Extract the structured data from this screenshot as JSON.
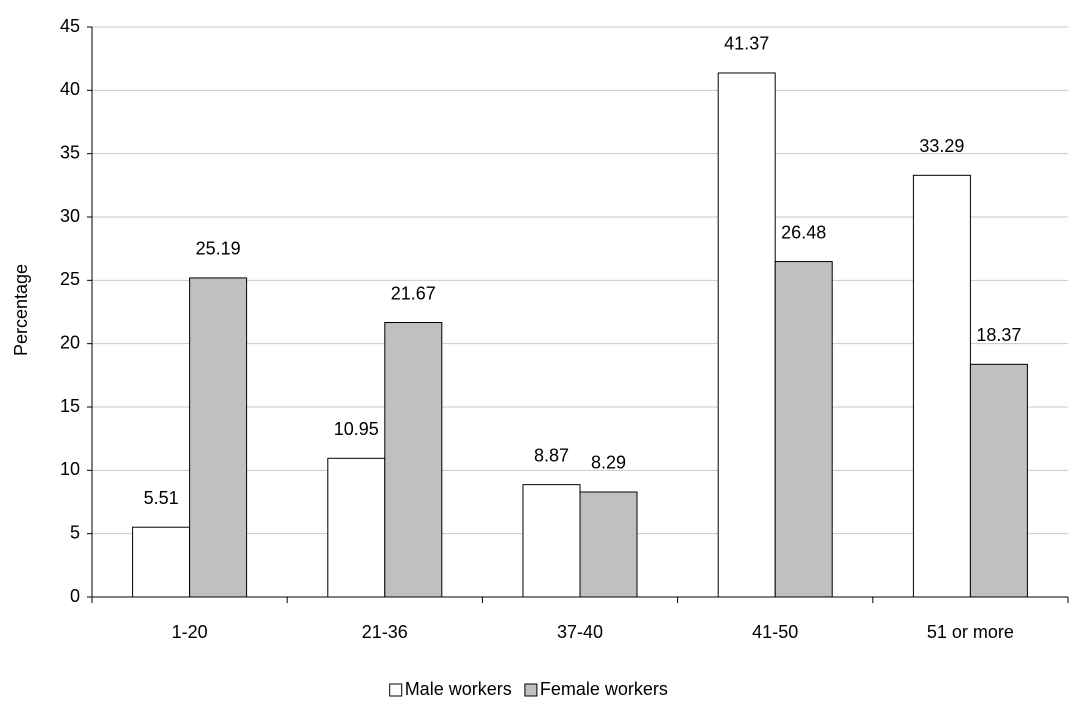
{
  "chart_data": {
    "type": "bar",
    "y_label": "Percentage",
    "categories": [
      "1-20",
      "21-36",
      "37-40",
      "41-50",
      "51 or more"
    ],
    "series": [
      {
        "name": "Male workers",
        "color": "#ffffff",
        "values": [
          5.51,
          10.95,
          8.87,
          41.37,
          33.29
        ]
      },
      {
        "name": "Female workers",
        "color": "#c0c0c0",
        "values": [
          25.19,
          21.67,
          8.29,
          26.48,
          18.37
        ]
      }
    ],
    "ylim": [
      0,
      45
    ],
    "yticks": [
      0,
      5,
      10,
      15,
      20,
      25,
      30,
      35,
      40,
      45
    ],
    "grid": true,
    "legend": "bottom"
  }
}
